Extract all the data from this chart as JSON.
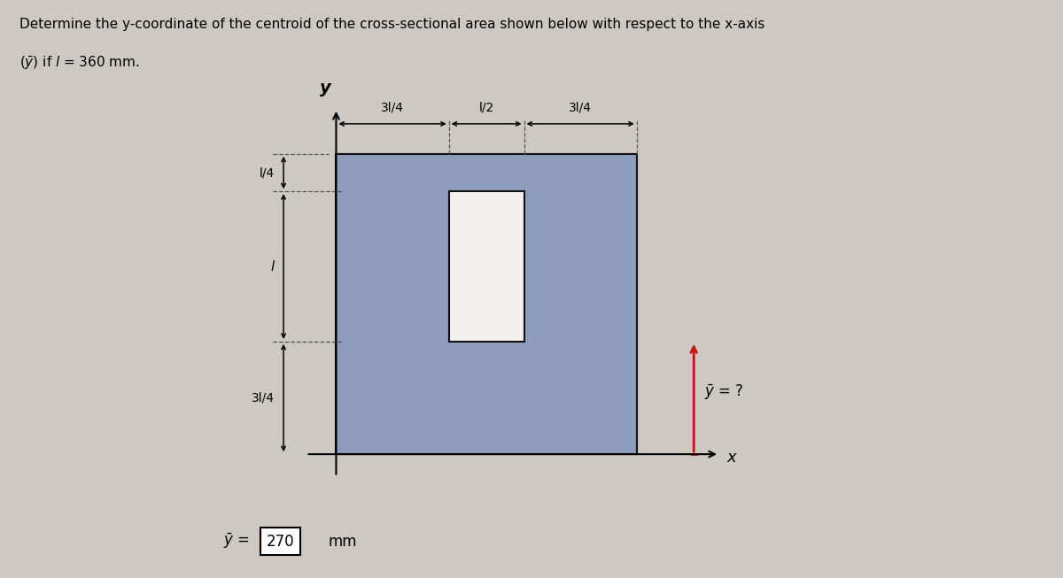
{
  "l": 360,
  "title_line1": "Determine the y-coordinate of the centroid of the cross-sectional area shown below with respect to the x-axis",
  "title_line2": "(ȳ) if l = 360 mm.",
  "outer_rect_color": "#8e9dbd",
  "cutout_color": "#f2f0ee",
  "answer": "270",
  "answer_unit": "mm",
  "page_bg": "#cdc9c2",
  "ybar_arrow_color": "#cc1111",
  "dim_line_color": "#111111",
  "shape_edge_color": "#111111"
}
